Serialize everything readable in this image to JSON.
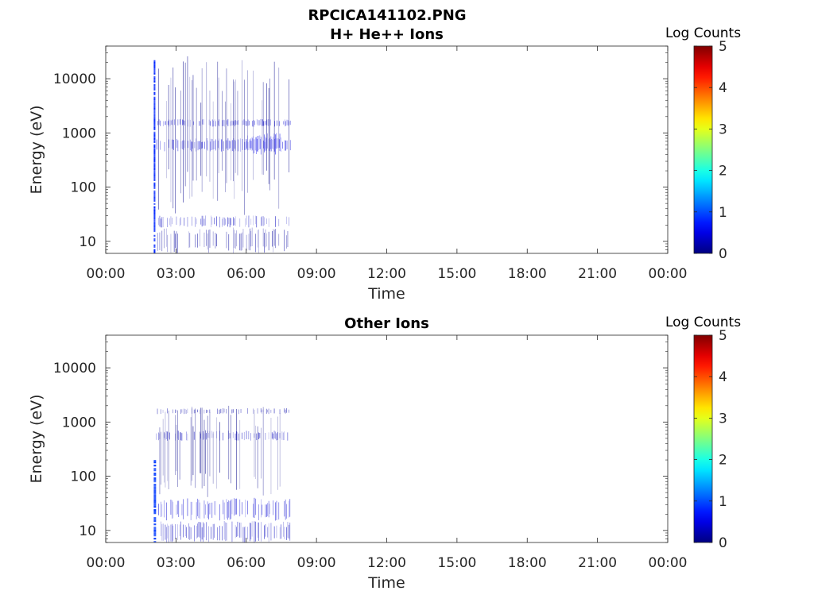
{
  "figure": {
    "title": "RPCICA141102.PNG"
  },
  "chart_data": [
    {
      "type": "heatmap",
      "title": "H+ He++ Ions",
      "xlabel": "Time",
      "ylabel": "Energy (eV)",
      "x_tick_labels": [
        "00:00",
        "03:00",
        "06:00",
        "09:00",
        "12:00",
        "15:00",
        "18:00",
        "21:00",
        "00:00"
      ],
      "xlim_hours": [
        0,
        24
      ],
      "y_scale": "log",
      "y_tick_values": [
        10,
        100,
        1000,
        10000
      ],
      "y_tick_labels": [
        "10",
        "100",
        "1000",
        "10000"
      ],
      "ylim": [
        6,
        40000
      ],
      "colorbar": {
        "label": "Log Counts",
        "range": [
          0,
          5
        ],
        "tick_labels": [
          "0",
          "1",
          "2",
          "3",
          "4",
          "5"
        ],
        "colormap": "jet"
      },
      "data_coverage_hours": [
        2.05,
        7.9
      ],
      "features": [
        {
          "t_start": 2.05,
          "t_end": 2.12,
          "e_min": 6,
          "e_max": 22000,
          "log_counts": 0.8
        },
        {
          "t_start": 2.12,
          "t_end": 7.9,
          "e_min": 1300,
          "e_max": 1800,
          "log_counts": 0.4
        },
        {
          "t_start": 2.12,
          "t_end": 7.9,
          "e_min": 450,
          "e_max": 800,
          "log_counts": 0.45
        },
        {
          "t_start": 6.0,
          "t_end": 7.5,
          "e_min": 400,
          "e_max": 1000,
          "log_counts": 0.55
        },
        {
          "t_start": 2.2,
          "t_end": 7.9,
          "e_min": 18,
          "e_max": 30,
          "log_counts": 0.3
        },
        {
          "t_start": 2.2,
          "t_end": 7.9,
          "e_min": 6,
          "e_max": 18,
          "log_counts": 0.15
        },
        {
          "t_start": 2.2,
          "t_end": 7.9,
          "e_min": 30,
          "e_max": 26000,
          "log_counts": 0.05
        }
      ]
    },
    {
      "type": "heatmap",
      "title": "Other Ions",
      "xlabel": "Time",
      "ylabel": "Energy (eV)",
      "x_tick_labels": [
        "00:00",
        "03:00",
        "06:00",
        "09:00",
        "12:00",
        "15:00",
        "18:00",
        "21:00",
        "00:00"
      ],
      "xlim_hours": [
        0,
        24
      ],
      "y_scale": "log",
      "y_tick_values": [
        10,
        100,
        1000,
        10000
      ],
      "y_tick_labels": [
        "10",
        "100",
        "1000",
        "10000"
      ],
      "ylim": [
        6,
        40000
      ],
      "colorbar": {
        "label": "Log Counts",
        "range": [
          0,
          5
        ],
        "tick_labels": [
          "0",
          "1",
          "2",
          "3",
          "4",
          "5"
        ],
        "colormap": "jet"
      },
      "data_coverage_hours": [
        2.05,
        7.9
      ],
      "features": [
        {
          "t_start": 2.05,
          "t_end": 2.15,
          "e_min": 6,
          "e_max": 200,
          "log_counts": 0.9
        },
        {
          "t_start": 2.15,
          "t_end": 7.9,
          "e_min": 1400,
          "e_max": 1800,
          "log_counts": 0.2
        },
        {
          "t_start": 2.15,
          "t_end": 7.9,
          "e_min": 450,
          "e_max": 700,
          "log_counts": 0.3
        },
        {
          "t_start": 2.2,
          "t_end": 7.9,
          "e_min": 15,
          "e_max": 40,
          "log_counts": 0.4
        },
        {
          "t_start": 2.2,
          "t_end": 7.9,
          "e_min": 6,
          "e_max": 15,
          "log_counts": 0.3
        },
        {
          "t_start": 2.2,
          "t_end": 7.9,
          "e_min": 40,
          "e_max": 2000,
          "log_counts": 0.05
        }
      ]
    }
  ]
}
